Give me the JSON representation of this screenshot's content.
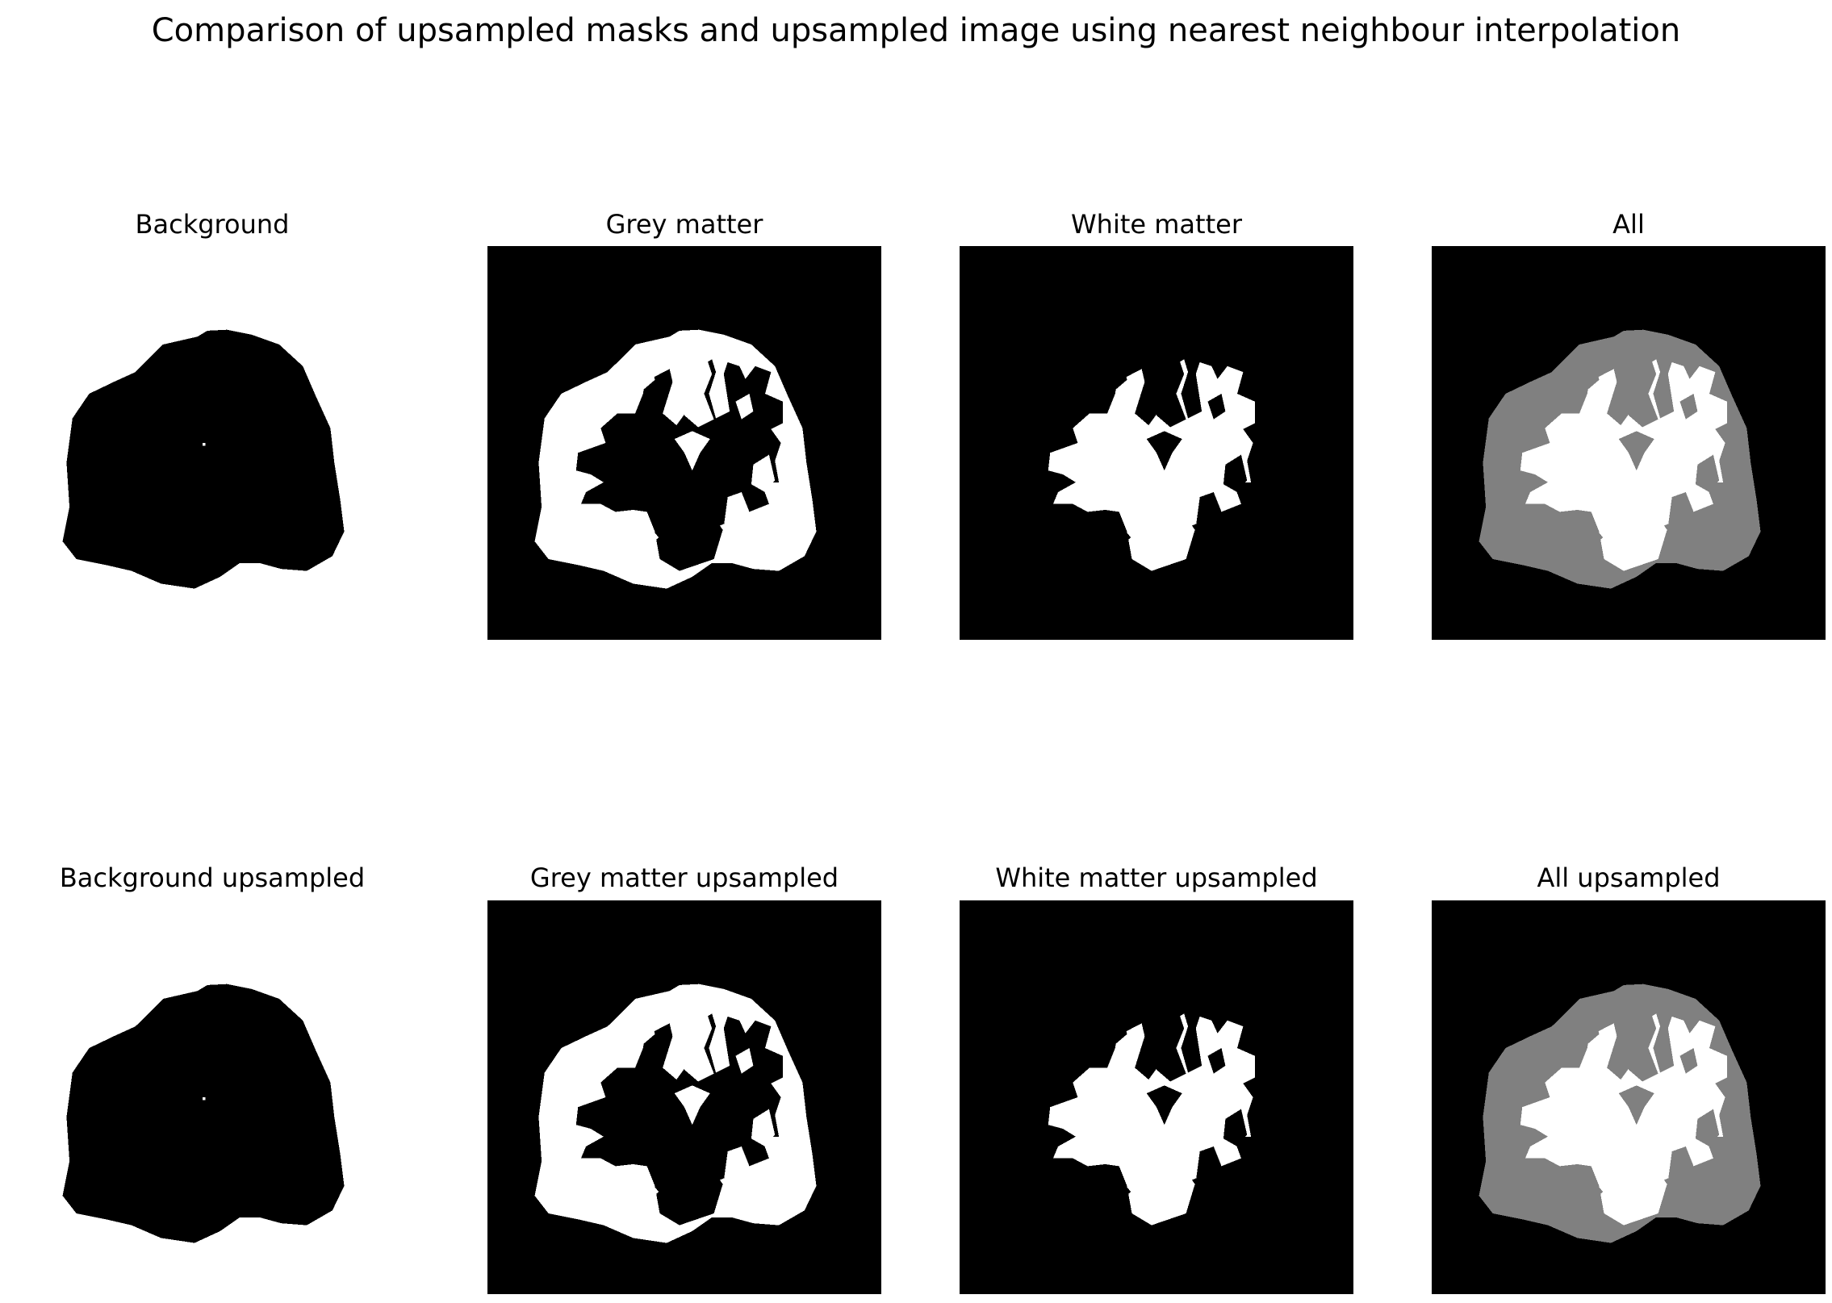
{
  "figure": {
    "title": "Comparison of upsampled masks and upsampled image using nearest neighbour interpolation"
  },
  "panels": [
    {
      "title": "Background",
      "mask": "background"
    },
    {
      "title": "Grey matter",
      "mask": "grey-matter"
    },
    {
      "title": "White matter",
      "mask": "white-matter"
    },
    {
      "title": "All",
      "mask": "all"
    },
    {
      "title": "Background upsampled",
      "mask": "background"
    },
    {
      "title": "Grey matter upsampled",
      "mask": "grey-matter"
    },
    {
      "title": "White matter upsampled",
      "mask": "white-matter"
    },
    {
      "title": "All upsampled",
      "mask": "all"
    }
  ],
  "colors": {
    "background": "#000000",
    "grey_matter": "#808080",
    "white_matter": "#ffffff",
    "figure": "#ffffff"
  }
}
